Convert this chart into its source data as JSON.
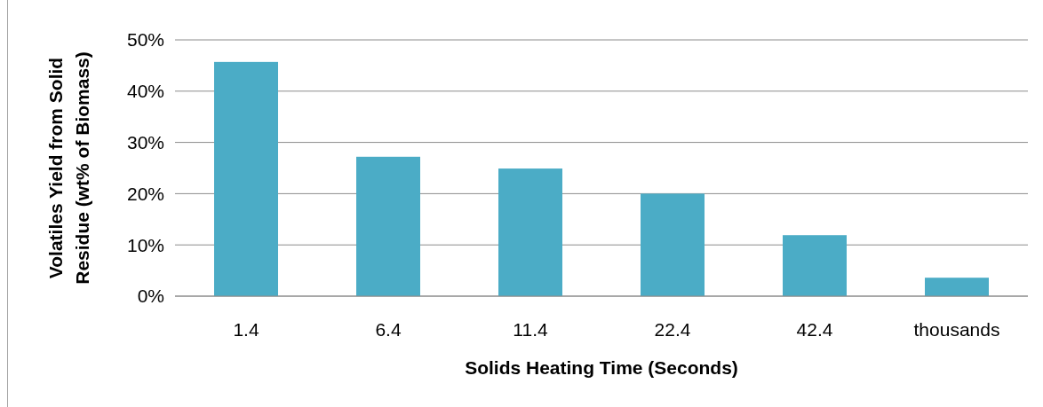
{
  "chart_data": {
    "type": "bar",
    "xlabel": "Solids Heating Time (Seconds)",
    "ylabel": "Volatiles Yield from Solid Residue (wt% of Biomass)",
    "categories": [
      "1.4",
      "6.4",
      "11.4",
      "22.4",
      "42.4",
      "thousands"
    ],
    "values": [
      45.7,
      27.2,
      24.9,
      20.0,
      11.9,
      3.6
    ],
    "color": "#4bacc6",
    "ylim": [
      0,
      50
    ],
    "yticks": [
      {
        "value": 0,
        "label": "0%"
      },
      {
        "value": 10,
        "label": "10%"
      },
      {
        "value": 20,
        "label": "20%"
      },
      {
        "value": 30,
        "label": "30%"
      },
      {
        "value": 40,
        "label": "40%"
      },
      {
        "value": 50,
        "label": "50%"
      }
    ],
    "grid": "y"
  }
}
